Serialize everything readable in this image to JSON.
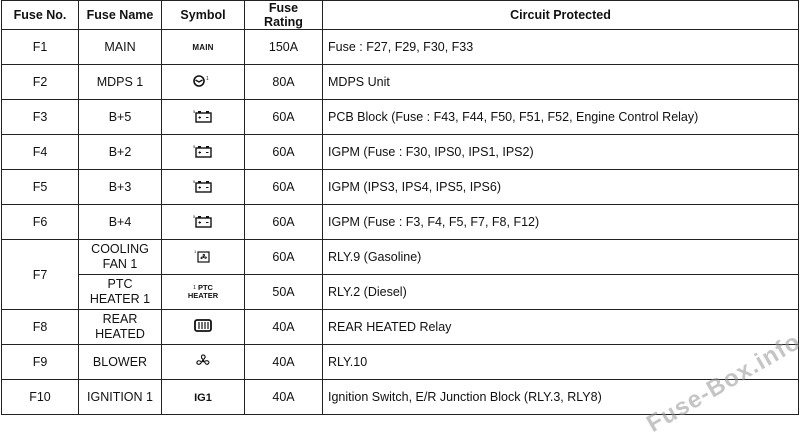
{
  "table": {
    "headers": {
      "fuse_no": "Fuse No.",
      "fuse_name": "Fuse Name",
      "symbol": "Symbol",
      "fuse_rating": "Fuse Rating",
      "circuit": "Circuit Protected"
    },
    "rows": [
      {
        "no": "F1",
        "name": "MAIN",
        "symbol_text": "MAIN",
        "rating": "150A",
        "circuit": "Fuse : F27, F29, F30, F33"
      },
      {
        "no": "F2",
        "name": "MDPS 1",
        "symbol_icon": "steering-wheel-icon",
        "rating": "80A",
        "circuit": "MDPS Unit"
      },
      {
        "no": "F3",
        "name": "B+5",
        "symbol_icon": "battery-icon",
        "rating": "60A",
        "circuit": "PCB Block (Fuse : F43, F44, F50, F51, F52, Engine Control Relay)"
      },
      {
        "no": "F4",
        "name": "B+2",
        "symbol_icon": "battery-icon",
        "rating": "60A",
        "circuit": "IGPM (Fuse : F30, IPS0, IPS1, IPS2)"
      },
      {
        "no": "F5",
        "name": "B+3",
        "symbol_icon": "battery-icon",
        "rating": "60A",
        "circuit": "IGPM (IPS3, IPS4, IPS5, IPS6)"
      },
      {
        "no": "F6",
        "name": "B+4",
        "symbol_icon": "battery-icon",
        "rating": "60A",
        "circuit": "IGPM (Fuse : F3, F4, F5, F7, F8, F12)"
      },
      {
        "no": "F7",
        "name": "COOLING FAN 1",
        "symbol_icon": "cooling-fan-icon",
        "rating": "60A",
        "circuit": "RLY.9 (Gasoline)"
      },
      {
        "no": "",
        "name": "PTC HEATER 1",
        "symbol_text": "PTC HEATER",
        "symbol_sup": "1",
        "rating": "50A",
        "circuit": "RLY.2 (Diesel)"
      },
      {
        "no": "F8",
        "name": "REAR HEATED",
        "symbol_icon": "rear-defroster-icon",
        "rating": "40A",
        "circuit": "REAR HEATED Relay"
      },
      {
        "no": "F9",
        "name": "BLOWER",
        "symbol_icon": "blower-fan-icon",
        "rating": "40A",
        "circuit": "RLY.10"
      },
      {
        "no": "F10",
        "name": "IGNITION 1",
        "symbol_text": "IG1",
        "rating": "40A",
        "circuit": "Ignition Switch, E/R Junction Block (RLY.3, RLY8)"
      }
    ]
  },
  "name_lines": {
    "cooling_1": "COOLING",
    "cooling_2": "FAN 1",
    "ptc_1": "PTC",
    "ptc_2": "HEATER 1",
    "rear_1": "REAR",
    "rear_2": "HEATED"
  },
  "symbol_labels": {
    "mdps_sup": "1",
    "battery_sup": "5",
    "ptc_line1": "PTC",
    "ptc_line2": "HEATER"
  },
  "watermark": "Fuse-Box.info"
}
